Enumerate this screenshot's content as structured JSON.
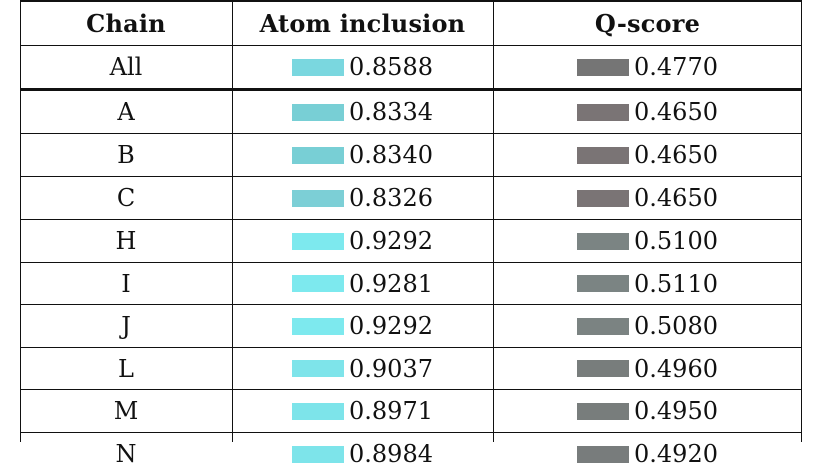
{
  "table": {
    "headers": {
      "chain": "Chain",
      "atom_inclusion": "Atom inclusion",
      "q_score": "Q-score"
    },
    "rows": [
      {
        "chain": "All",
        "atom_inclusion": "0.8588",
        "q_score": "0.4770",
        "ai_color": "#7ad7df",
        "q_color": "#757575"
      },
      {
        "chain": "A",
        "atom_inclusion": "0.8334",
        "q_score": "0.4650",
        "ai_color": "#78cfd5",
        "q_color": "#7a7475"
      },
      {
        "chain": "B",
        "atom_inclusion": "0.8340",
        "q_score": "0.4650",
        "ai_color": "#78cfd5",
        "q_color": "#7a7475"
      },
      {
        "chain": "C",
        "atom_inclusion": "0.8326",
        "q_score": "0.4650",
        "ai_color": "#7ccfd6",
        "q_color": "#7a7475"
      },
      {
        "chain": "H",
        "atom_inclusion": "0.9292",
        "q_score": "0.5100",
        "ai_color": "#7de9ee",
        "q_color": "#7b8483"
      },
      {
        "chain": "I",
        "atom_inclusion": "0.9281",
        "q_score": "0.5110",
        "ai_color": "#7de9ee",
        "q_color": "#7b8483"
      },
      {
        "chain": "J",
        "atom_inclusion": "0.9292",
        "q_score": "0.5080",
        "ai_color": "#7de9ee",
        "q_color": "#7b8382"
      },
      {
        "chain": "L",
        "atom_inclusion": "0.9037",
        "q_score": "0.4960",
        "ai_color": "#7ee4ea",
        "q_color": "#787d7c"
      },
      {
        "chain": "M",
        "atom_inclusion": "0.8971",
        "q_score": "0.4950",
        "ai_color": "#7de4ea",
        "q_color": "#787d7c"
      },
      {
        "chain": "N",
        "atom_inclusion": "0.8984",
        "q_score": "0.4920",
        "ai_color": "#7de4ea",
        "q_color": "#787c7c"
      }
    ]
  }
}
